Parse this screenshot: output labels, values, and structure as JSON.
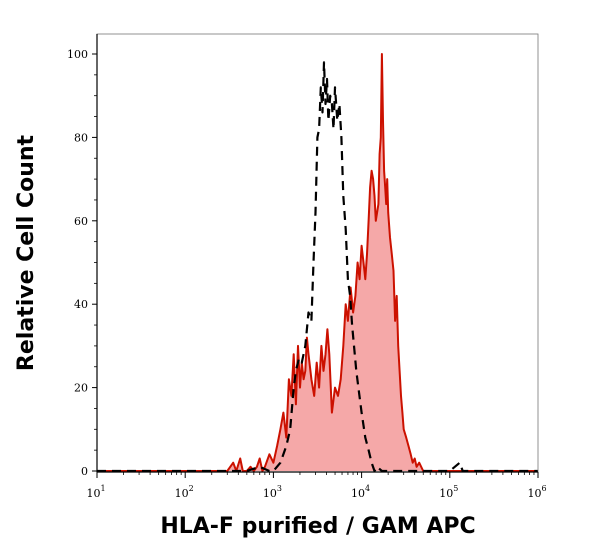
{
  "chart_data": {
    "type": "area",
    "title": "",
    "xlabel": "HLA-F purified / GAM APC",
    "ylabel": "Relative Cell Count",
    "x_scale": "log",
    "xlim": [
      10,
      1000000
    ],
    "ylim": [
      0,
      100
    ],
    "x_ticks": [
      {
        "base": "10",
        "exp": "1"
      },
      {
        "base": "10",
        "exp": "2"
      },
      {
        "base": "10",
        "exp": "3"
      },
      {
        "base": "10",
        "exp": "4"
      },
      {
        "base": "10",
        "exp": "5"
      },
      {
        "base": "10",
        "exp": "6"
      }
    ],
    "y_ticks": [
      "0",
      "20",
      "40",
      "60",
      "80",
      "100"
    ],
    "grid": false,
    "series": [
      {
        "style": "dashed",
        "color": "#000000",
        "x": [
          10,
          100,
          350,
          500,
          700,
          900,
          1000,
          1200,
          1400,
          1550,
          1700,
          1800,
          1950,
          2100,
          2300,
          2500,
          2700,
          2850,
          3000,
          3150,
          3300,
          3450,
          3600,
          3750,
          3900,
          4050,
          4200,
          4400,
          4600,
          4800,
          5000,
          5300,
          5600,
          5900,
          6200,
          6600,
          7000,
          7400,
          7800,
          8200,
          8700,
          9200,
          10000,
          11000,
          12000,
          13000,
          14000,
          15000,
          17000,
          20000,
          25000,
          30000,
          40000,
          60000,
          100000,
          130000,
          140000,
          200000,
          1000000
        ],
        "y": [
          0,
          0,
          0,
          0,
          1,
          0,
          0,
          2,
          6,
          10,
          20,
          24,
          27,
          26,
          30,
          38,
          36,
          50,
          62,
          80,
          82,
          92,
          86,
          98,
          88,
          94,
          84,
          90,
          88,
          82,
          92,
          84,
          88,
          80,
          66,
          58,
          46,
          42,
          35,
          30,
          24,
          20,
          14,
          8,
          5,
          2,
          0,
          1,
          0,
          0,
          0,
          0,
          0,
          0,
          0,
          2,
          0,
          0,
          0
        ]
      },
      {
        "style": "filled",
        "color": "#cc1100",
        "fill": "#f5a8a8",
        "x": [
          10,
          100,
          300,
          350,
          380,
          420,
          450,
          500,
          550,
          600,
          650,
          700,
          750,
          800,
          900,
          1000,
          1100,
          1200,
          1300,
          1400,
          1500,
          1600,
          1700,
          1800,
          1900,
          2000,
          2100,
          2200,
          2300,
          2400,
          2500,
          2700,
          2900,
          3100,
          3300,
          3500,
          3700,
          3900,
          4100,
          4300,
          4600,
          5000,
          5400,
          5800,
          6200,
          6600,
          7000,
          7500,
          8000,
          8500,
          9000,
          9500,
          10000,
          10500,
          11000,
          11500,
          12000,
          12500,
          13000,
          13500,
          14000,
          14500,
          15000,
          15500,
          16000,
          16500,
          17000,
          17500,
          18000,
          18500,
          19000,
          19500,
          20000,
          21000,
          22000,
          23000,
          24000,
          25000,
          26000,
          27000,
          28000,
          29000,
          30000,
          32000,
          34000,
          36000,
          38000,
          40000,
          42000,
          45000,
          50000,
          60000,
          1000000
        ],
        "y": [
          0,
          0,
          0,
          2,
          0,
          3,
          0,
          0,
          1,
          0,
          1,
          3,
          0,
          1,
          4,
          2,
          6,
          10,
          14,
          8,
          22,
          18,
          28,
          16,
          30,
          20,
          26,
          22,
          24,
          32,
          28,
          22,
          18,
          26,
          20,
          30,
          24,
          28,
          34,
          28,
          14,
          20,
          18,
          22,
          30,
          40,
          36,
          44,
          38,
          42,
          50,
          46,
          54,
          50,
          46,
          52,
          60,
          68,
          72,
          70,
          66,
          60,
          62,
          64,
          76,
          80,
          100,
          84,
          72,
          68,
          64,
          70,
          62,
          56,
          52,
          48,
          36,
          42,
          30,
          24,
          18,
          14,
          10,
          8,
          6,
          4,
          2,
          3,
          1,
          2,
          0,
          0,
          0
        ]
      }
    ]
  }
}
